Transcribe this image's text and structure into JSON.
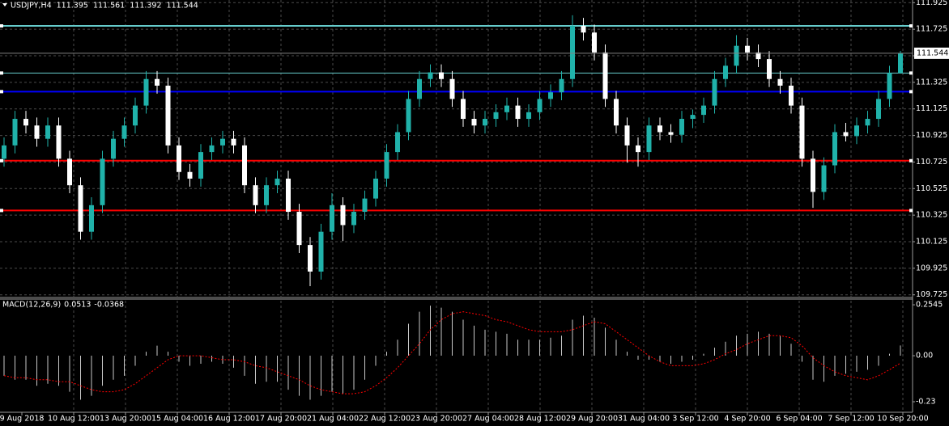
{
  "chart_data": [
    {
      "type": "candlestick",
      "symbol": "USDJPY,H4",
      "up_color": "#20b2aa",
      "down_color": "#ffffff",
      "grid": true,
      "ylim": [
        109.705,
        111.945
      ],
      "yticks": [
        111.925,
        111.725,
        111.525,
        111.325,
        111.125,
        110.925,
        110.725,
        110.525,
        110.325,
        110.125,
        109.925,
        109.725
      ],
      "levels": [
        {
          "value": 111.75,
          "color": "#66cccc"
        },
        {
          "value": 111.395,
          "color": "#66cccc"
        },
        {
          "value": 111.255,
          "color": "#0000ff"
        },
        {
          "value": 110.735,
          "color": "#ff0000"
        },
        {
          "value": 110.36,
          "color": "#ff0000"
        }
      ],
      "time_labels": [
        "9 Aug 2018",
        "10 Aug 12:00",
        "13 Aug 20:00",
        "15 Aug 04:00",
        "16 Aug 12:00",
        "17 Aug 20:00",
        "21 Aug 04:00",
        "22 Aug 12:00",
        "23 Aug 20:00",
        "27 Aug 04:00",
        "28 Aug 12:00",
        "29 Aug 20:00",
        "31 Aug 04:00",
        "3 Sep 12:00",
        "4 Sep 20:00",
        "6 Sep 04:00",
        "7 Sep 12:00",
        "10 Sep 20:00"
      ],
      "candles": [
        [
          110.75,
          110.91,
          110.69,
          110.85
        ],
        [
          110.85,
          111.11,
          110.79,
          111.05
        ],
        [
          111.05,
          111.11,
          110.94,
          111.0
        ],
        [
          111.0,
          111.06,
          110.84,
          110.9
        ],
        [
          110.9,
          111.06,
          110.84,
          111.0
        ],
        [
          111.0,
          111.06,
          110.69,
          110.75
        ],
        [
          110.75,
          110.81,
          110.49,
          110.55
        ],
        [
          110.55,
          110.61,
          110.14,
          110.2
        ],
        [
          110.2,
          110.46,
          110.14,
          110.4
        ],
        [
          110.4,
          110.81,
          110.34,
          110.75
        ],
        [
          110.75,
          110.96,
          110.69,
          110.9
        ],
        [
          110.9,
          111.06,
          110.84,
          111.0
        ],
        [
          111.0,
          111.21,
          110.94,
          111.15
        ],
        [
          111.15,
          111.41,
          111.09,
          111.35
        ],
        [
          111.35,
          111.41,
          111.24,
          111.3
        ],
        [
          111.3,
          111.36,
          110.79,
          110.85
        ],
        [
          110.85,
          110.91,
          110.59,
          110.65
        ],
        [
          110.65,
          110.71,
          110.54,
          110.6
        ],
        [
          110.6,
          110.86,
          110.54,
          110.8
        ],
        [
          110.8,
          110.91,
          110.74,
          110.85
        ],
        [
          110.85,
          110.96,
          110.79,
          110.9
        ],
        [
          110.9,
          110.96,
          110.79,
          110.85
        ],
        [
          110.85,
          110.91,
          110.49,
          110.55
        ],
        [
          110.55,
          110.61,
          110.34,
          110.4
        ],
        [
          110.4,
          110.61,
          110.34,
          110.55
        ],
        [
          110.55,
          110.66,
          110.49,
          110.6
        ],
        [
          110.6,
          110.66,
          110.29,
          110.35
        ],
        [
          110.35,
          110.41,
          110.04,
          110.1
        ],
        [
          110.1,
          110.16,
          109.79,
          109.9
        ],
        [
          109.9,
          110.26,
          109.84,
          110.2
        ],
        [
          110.2,
          110.49,
          110.14,
          110.4
        ],
        [
          110.4,
          110.46,
          110.13,
          110.25
        ],
        [
          110.25,
          110.41,
          110.19,
          110.35
        ],
        [
          110.35,
          110.51,
          110.29,
          110.45
        ],
        [
          110.45,
          110.66,
          110.39,
          110.6
        ],
        [
          110.6,
          110.86,
          110.54,
          110.8
        ],
        [
          110.8,
          111.01,
          110.74,
          110.95
        ],
        [
          110.95,
          111.26,
          110.89,
          111.2
        ],
        [
          111.2,
          111.41,
          111.14,
          111.35
        ],
        [
          111.35,
          111.46,
          111.29,
          111.4
        ],
        [
          111.4,
          111.46,
          111.29,
          111.35
        ],
        [
          111.35,
          111.41,
          111.14,
          111.2
        ],
        [
          111.2,
          111.26,
          110.99,
          111.05
        ],
        [
          111.05,
          111.11,
          110.94,
          111.0
        ],
        [
          111.0,
          111.11,
          110.94,
          111.05
        ],
        [
          111.05,
          111.16,
          110.99,
          111.1
        ],
        [
          111.1,
          111.21,
          111.04,
          111.15
        ],
        [
          111.15,
          111.21,
          110.99,
          111.05
        ],
        [
          111.05,
          111.16,
          110.99,
          111.1
        ],
        [
          111.1,
          111.26,
          111.04,
          111.2
        ],
        [
          111.2,
          111.31,
          111.14,
          111.25
        ],
        [
          111.25,
          111.41,
          111.19,
          111.35
        ],
        [
          111.35,
          111.83,
          111.29,
          111.75
        ],
        [
          111.75,
          111.81,
          111.64,
          111.7
        ],
        [
          111.7,
          111.76,
          111.49,
          111.55
        ],
        [
          111.55,
          111.61,
          111.14,
          111.2
        ],
        [
          111.2,
          111.26,
          110.94,
          111.0
        ],
        [
          111.0,
          111.06,
          110.72,
          110.85
        ],
        [
          110.85,
          110.91,
          110.69,
          110.8
        ],
        [
          110.8,
          111.06,
          110.74,
          111.0
        ],
        [
          111.0,
          111.06,
          110.89,
          110.95
        ],
        [
          110.95,
          111.01,
          110.87,
          110.93
        ],
        [
          110.93,
          111.11,
          110.87,
          111.05
        ],
        [
          111.05,
          111.12,
          110.98,
          111.08
        ],
        [
          111.08,
          111.21,
          111.02,
          111.15
        ],
        [
          111.15,
          111.41,
          111.09,
          111.35
        ],
        [
          111.35,
          111.51,
          111.29,
          111.45
        ],
        [
          111.45,
          111.68,
          111.39,
          111.6
        ],
        [
          111.6,
          111.66,
          111.49,
          111.55
        ],
        [
          111.55,
          111.61,
          111.44,
          111.5
        ],
        [
          111.5,
          111.56,
          111.29,
          111.35
        ],
        [
          111.35,
          111.41,
          111.24,
          111.3
        ],
        [
          111.3,
          111.36,
          111.09,
          111.15
        ],
        [
          111.15,
          111.21,
          110.69,
          110.75
        ],
        [
          110.75,
          110.81,
          110.38,
          110.5
        ],
        [
          110.5,
          110.76,
          110.44,
          110.7
        ],
        [
          110.7,
          111.01,
          110.64,
          110.95
        ],
        [
          110.95,
          111.02,
          110.88,
          110.92
        ],
        [
          110.92,
          111.06,
          110.86,
          111.0
        ],
        [
          111.0,
          111.11,
          110.94,
          111.05
        ],
        [
          111.05,
          111.26,
          110.99,
          111.2
        ],
        [
          111.2,
          111.45,
          111.14,
          111.395
        ],
        [
          111.395,
          111.561,
          111.392,
          111.544
        ]
      ]
    },
    {
      "type": "macd",
      "title": "MACD(12,26,9)",
      "hist_color": "#c8c8c8",
      "signal_color": "#ff0000",
      "ylim": [
        -0.2825,
        0.283
      ],
      "yticks": [
        0.2545,
        {
          "value": 0,
          "label": "0.00"
        },
        -0.23
      ],
      "histogram": [
        -0.1,
        -0.12,
        -0.12,
        -0.15,
        -0.14,
        -0.15,
        -0.18,
        -0.22,
        -0.2,
        -0.15,
        -0.12,
        -0.1,
        -0.05,
        0.02,
        0.05,
        0.02,
        -0.03,
        -0.05,
        -0.04,
        -0.03,
        -0.04,
        -0.06,
        -0.1,
        -0.14,
        -0.13,
        -0.13,
        -0.17,
        -0.2,
        -0.22,
        -0.2,
        -0.18,
        -0.19,
        -0.17,
        -0.12,
        -0.05,
        0.02,
        0.08,
        0.16,
        0.22,
        0.25,
        0.24,
        0.22,
        0.18,
        0.15,
        0.13,
        0.12,
        0.11,
        0.08,
        0.08,
        0.08,
        0.09,
        0.1,
        0.18,
        0.2,
        0.19,
        0.14,
        0.08,
        0.02,
        -0.02,
        -0.02,
        -0.03,
        -0.04,
        -0.03,
        -0.02,
        0.01,
        0.04,
        0.07,
        0.1,
        0.11,
        0.12,
        0.11,
        0.1,
        0.06,
        -0.03,
        -0.12,
        -0.13,
        -0.1,
        -0.09,
        -0.08,
        -0.07,
        -0.05,
        0.01,
        0.0513
      ],
      "signal": [
        -0.1,
        -0.11,
        -0.11,
        -0.12,
        -0.12,
        -0.13,
        -0.13,
        -0.15,
        -0.17,
        -0.18,
        -0.18,
        -0.17,
        -0.14,
        -0.1,
        -0.06,
        -0.02,
        0.0,
        0.0,
        0.0,
        -0.01,
        -0.02,
        -0.02,
        -0.03,
        -0.05,
        -0.06,
        -0.08,
        -0.1,
        -0.12,
        -0.15,
        -0.17,
        -0.18,
        -0.19,
        -0.19,
        -0.18,
        -0.15,
        -0.11,
        -0.06,
        0.0,
        0.06,
        0.13,
        0.18,
        0.21,
        0.22,
        0.21,
        0.2,
        0.18,
        0.17,
        0.15,
        0.13,
        0.12,
        0.12,
        0.12,
        0.13,
        0.15,
        0.17,
        0.16,
        0.12,
        0.08,
        0.04,
        0.0,
        -0.03,
        -0.05,
        -0.05,
        -0.05,
        -0.04,
        -0.02,
        0.01,
        0.03,
        0.06,
        0.08,
        0.1,
        0.1,
        0.09,
        0.05,
        -0.01,
        -0.05,
        -0.08,
        -0.1,
        -0.11,
        -0.12,
        -0.1,
        -0.07,
        -0.0368
      ]
    }
  ]
}
